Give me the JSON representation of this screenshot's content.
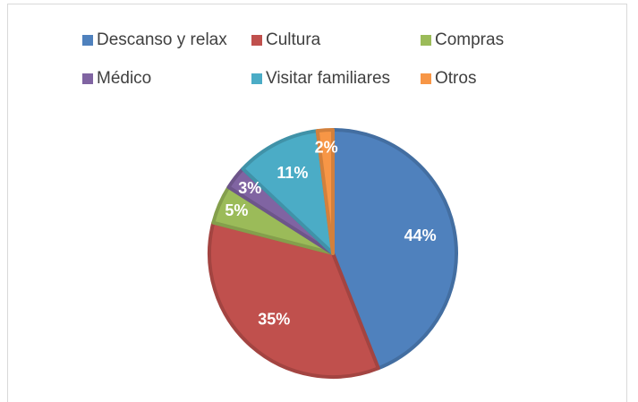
{
  "chart_data": {
    "type": "pie",
    "categories": [
      "Descanso y relax",
      "Cultura",
      "Compras",
      "Médico",
      "Visitar familiares",
      "Otros"
    ],
    "values": [
      44,
      35,
      5,
      3,
      11,
      2
    ],
    "value_labels": [
      "44%",
      "35%",
      "5%",
      "3%",
      "11%",
      "2%"
    ],
    "colors": [
      "#4f81bd",
      "#c0504d",
      "#9bbb59",
      "#8064a2",
      "#4bacc6",
      "#f79646"
    ],
    "legend": "top"
  }
}
